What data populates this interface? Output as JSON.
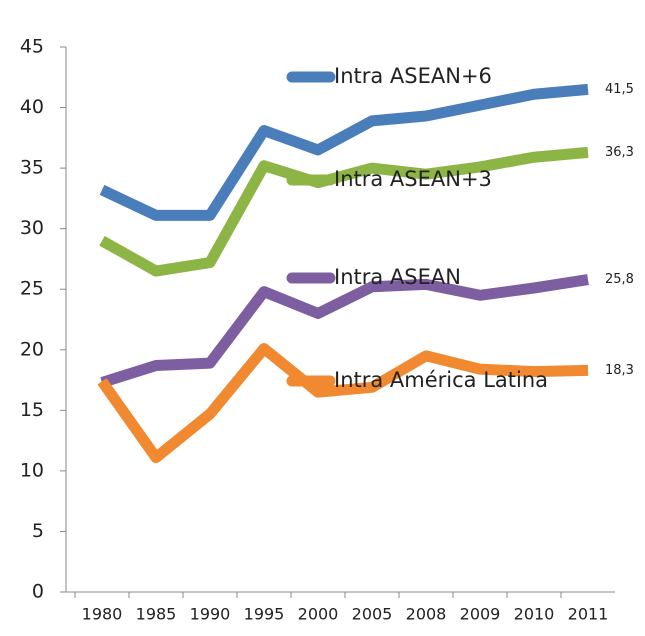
{
  "chart_data": {
    "type": "line",
    "categories": [
      "1980",
      "1985",
      "1990",
      "1995",
      "2000",
      "2005",
      "2008",
      "2009",
      "2010",
      "2011"
    ],
    "series": [
      {
        "name": "Intra ASEAN+6",
        "color": "#4a7ebb",
        "values": [
          33.2,
          31.1,
          31.1,
          38.1,
          36.5,
          38.9,
          39.3,
          40.2,
          41.1,
          41.5
        ],
        "value_labels": [
          null,
          null,
          null,
          null,
          null,
          null,
          null,
          null,
          null,
          "41,5"
        ]
      },
      {
        "name": "Intra ASEAN+3",
        "color": "#8db545",
        "values": [
          29,
          26.5,
          27.2,
          35.2,
          33.8,
          35,
          34.5,
          35.1,
          35.9,
          36.3
        ],
        "value_labels": [
          null,
          null,
          null,
          null,
          null,
          null,
          null,
          null,
          null,
          "36,3"
        ]
      },
      {
        "name": "Intra ASEAN",
        "color": "#7d5ea0",
        "values": [
          17.3,
          18.7,
          18.9,
          24.8,
          23,
          25.2,
          25.4,
          24.5,
          25.1,
          25.8
        ],
        "value_labels": [
          null,
          null,
          null,
          null,
          null,
          null,
          null,
          null,
          null,
          "25,8"
        ]
      },
      {
        "name": "Intra América Latina",
        "color": "#f0892f",
        "values": [
          17.4,
          11.1,
          14.7,
          20.1,
          16.5,
          16.9,
          19.5,
          18.4,
          18.2,
          18.3
        ],
        "value_labels": [
          null,
          null,
          null,
          null,
          null,
          null,
          null,
          null,
          null,
          "18,3"
        ]
      }
    ],
    "ylim": [
      0,
      45
    ],
    "yticks": [
      0,
      5,
      10,
      15,
      20,
      25,
      30,
      35,
      40,
      45
    ],
    "grid": false
  }
}
